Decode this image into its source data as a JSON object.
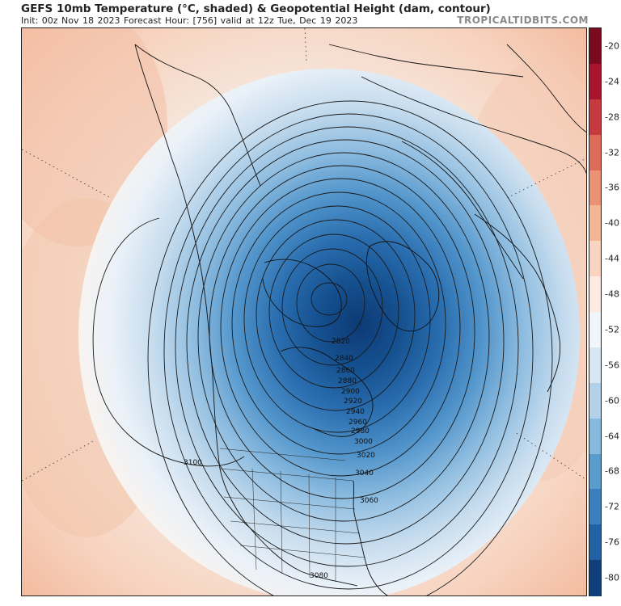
{
  "header": {
    "title": "GEFS 10mb Temperature (°C, shaded) & Geopotential Height (dam, contour)",
    "subtitle": "Init: 00z Nov 18 2023   Forecast Hour: [756]   valid at 12z Tue, Dec 19 2023",
    "brand": "TROPICALTIDBITS.COM"
  },
  "colorbar": {
    "ticks": [
      "-20",
      "-24",
      "-28",
      "-32",
      "-36",
      "-40",
      "-44",
      "-48",
      "-52",
      "-56",
      "-60",
      "-64",
      "-68",
      "-72",
      "-76",
      "-80"
    ],
    "colors": [
      "#7a0a1e",
      "#a8152c",
      "#c73a3f",
      "#dd6b5a",
      "#eb9275",
      "#f5b698",
      "#fad4c0",
      "#fdeae0",
      "#f2f5f9",
      "#d6e6f3",
      "#b3d2ea",
      "#87b8dd",
      "#5b9ccf",
      "#3a7fbe",
      "#2261a4",
      "#103f7c"
    ]
  },
  "contours": {
    "labels": [
      "2820",
      "2840",
      "2860",
      "2880",
      "2900",
      "2920",
      "2940",
      "2960",
      "2980",
      "3000",
      "3020",
      "3040",
      "3060",
      "3080",
      "3100"
    ]
  },
  "icons": {
    "map": "north-pole-stereographic-map"
  }
}
